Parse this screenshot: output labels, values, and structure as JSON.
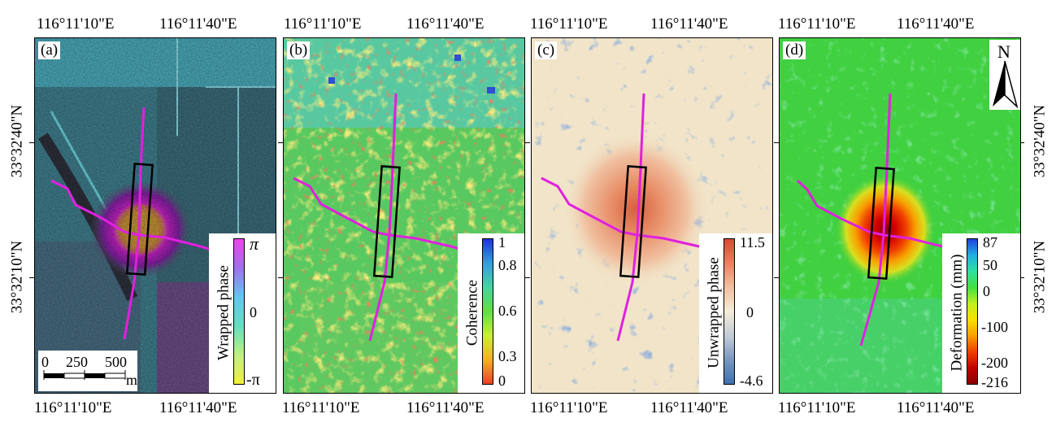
{
  "lon_ticks": [
    "116°11'10\"E",
    "116°11'40\"E"
  ],
  "lat_ticks": [
    "33°32'40\"N",
    "33°32'10\"N"
  ],
  "panels": [
    {
      "label": "(a)",
      "legend_title": "Wrapped phase",
      "legend_ticks": [
        "π",
        "0",
        "-π"
      ]
    },
    {
      "label": "(b)",
      "legend_title": "Coherence",
      "legend_ticks": [
        "1",
        "0.8",
        "0.6",
        "0.3",
        "0"
      ]
    },
    {
      "label": "(c)",
      "legend_title": "Unwrapped phase",
      "legend_ticks": [
        "11.5",
        "0",
        "-4.6"
      ]
    },
    {
      "label": "(d)",
      "legend_title": "Deformation (mm)",
      "legend_ticks": [
        "87",
        "50",
        "0",
        "-100",
        "-200",
        "-216"
      ]
    }
  ],
  "scalebar": {
    "ticks": [
      "0",
      "250",
      "500"
    ],
    "unit": "m"
  },
  "north_arrow": {
    "label": "N",
    "icon": "north-arrow-icon"
  },
  "colors": {
    "trajectory": "#e020e0",
    "box": "#000000"
  }
}
